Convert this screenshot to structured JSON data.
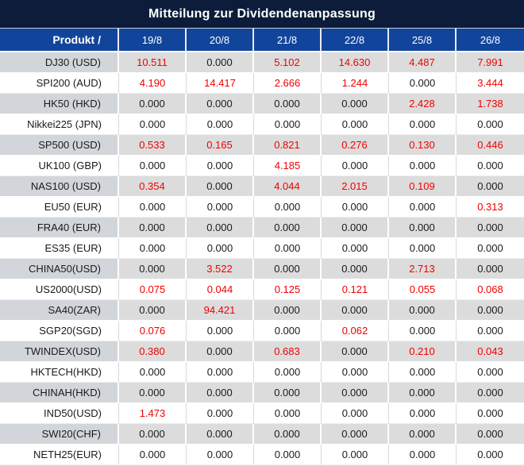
{
  "title": "Mitteilung zur Dividendenanpassung",
  "colors": {
    "title_bg": "#0c1c3a",
    "header_bg": "#11459b",
    "header_text": "#ffffff",
    "row_gray_bg": "#dcdcdc",
    "row_label_gray_bg": "#d2d6db",
    "row_white_bg": "#ffffff",
    "value_red": "#f20000",
    "value_black": "#1a1a1a"
  },
  "table": {
    "product_header": "Produkt /",
    "date_columns": [
      "19/8",
      "20/8",
      "21/8",
      "22/8",
      "25/8",
      "26/8"
    ],
    "zero_value": "0.000",
    "rows": [
      {
        "product": "DJ30 (USD)",
        "values": [
          "10.511",
          "0.000",
          "5.102",
          "14.630",
          "4.487",
          "7.991"
        ]
      },
      {
        "product": "SPI200 (AUD)",
        "values": [
          "4.190",
          "14.417",
          "2.666",
          "1.244",
          "0.000",
          "3.444"
        ]
      },
      {
        "product": "HK50 (HKD)",
        "values": [
          "0.000",
          "0.000",
          "0.000",
          "0.000",
          "2.428",
          "1.738"
        ]
      },
      {
        "product": "Nikkei225 (JPN)",
        "values": [
          "0.000",
          "0.000",
          "0.000",
          "0.000",
          "0.000",
          "0.000"
        ]
      },
      {
        "product": "SP500 (USD)",
        "values": [
          "0.533",
          "0.165",
          "0.821",
          "0.276",
          "0.130",
          "0.446"
        ]
      },
      {
        "product": "UK100 (GBP)",
        "values": [
          "0.000",
          "0.000",
          "4.185",
          "0.000",
          "0.000",
          "0.000"
        ]
      },
      {
        "product": "NAS100 (USD)",
        "values": [
          "0.354",
          "0.000",
          "4.044",
          "2.015",
          "0.109",
          "0.000"
        ]
      },
      {
        "product": "EU50 (EUR)",
        "values": [
          "0.000",
          "0.000",
          "0.000",
          "0.000",
          "0.000",
          "0.313"
        ]
      },
      {
        "product": "FRA40 (EUR)",
        "values": [
          "0.000",
          "0.000",
          "0.000",
          "0.000",
          "0.000",
          "0.000"
        ]
      },
      {
        "product": "ES35 (EUR)",
        "values": [
          "0.000",
          "0.000",
          "0.000",
          "0.000",
          "0.000",
          "0.000"
        ]
      },
      {
        "product": "CHINA50(USD)",
        "values": [
          "0.000",
          "3.522",
          "0.000",
          "0.000",
          "2.713",
          "0.000"
        ]
      },
      {
        "product": "US2000(USD)",
        "values": [
          "0.075",
          "0.044",
          "0.125",
          "0.121",
          "0.055",
          "0.068"
        ]
      },
      {
        "product": "SA40(ZAR)",
        "values": [
          "0.000",
          "94.421",
          "0.000",
          "0.000",
          "0.000",
          "0.000"
        ]
      },
      {
        "product": "SGP20(SGD)",
        "values": [
          "0.076",
          "0.000",
          "0.000",
          "0.062",
          "0.000",
          "0.000"
        ]
      },
      {
        "product": "TWINDEX(USD)",
        "values": [
          "0.380",
          "0.000",
          "0.683",
          "0.000",
          "0.210",
          "0.043"
        ]
      },
      {
        "product": "HKTECH(HKD)",
        "values": [
          "0.000",
          "0.000",
          "0.000",
          "0.000",
          "0.000",
          "0.000"
        ]
      },
      {
        "product": "CHINAH(HKD)",
        "values": [
          "0.000",
          "0.000",
          "0.000",
          "0.000",
          "0.000",
          "0.000"
        ]
      },
      {
        "product": "IND50(USD)",
        "values": [
          "1.473",
          "0.000",
          "0.000",
          "0.000",
          "0.000",
          "0.000"
        ]
      },
      {
        "product": "SWI20(CHF)",
        "values": [
          "0.000",
          "0.000",
          "0.000",
          "0.000",
          "0.000",
          "0.000"
        ]
      },
      {
        "product": "NETH25(EUR)",
        "values": [
          "0.000",
          "0.000",
          "0.000",
          "0.000",
          "0.000",
          "0.000"
        ]
      }
    ]
  }
}
